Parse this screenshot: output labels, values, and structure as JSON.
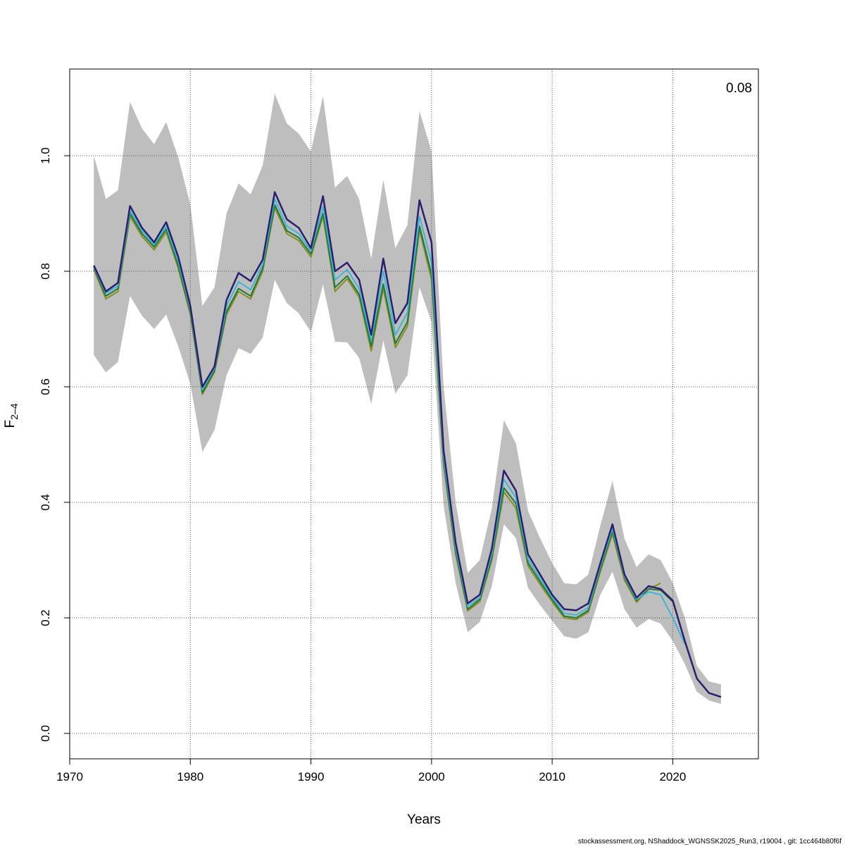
{
  "chart_data": {
    "type": "line",
    "ylabel": {
      "main": "F",
      "sub": "2–4"
    },
    "xlabel": "Years",
    "annotation": "0.08",
    "footer": "stockassessment.org, NShaddock_WGNSSK2025_Run3, r19004 , git: 1cc464b80f6f",
    "x": [
      1972,
      1973,
      1974,
      1975,
      1976,
      1977,
      1978,
      1979,
      1980,
      1981,
      1982,
      1983,
      1984,
      1985,
      1986,
      1987,
      1988,
      1989,
      1990,
      1991,
      1992,
      1993,
      1994,
      1995,
      1996,
      1997,
      1998,
      1999,
      2000,
      2001,
      2002,
      2003,
      2004,
      2005,
      2006,
      2007,
      2008,
      2009,
      2010,
      2011,
      2012,
      2013,
      2014,
      2015,
      2016,
      2017,
      2018,
      2019,
      2020,
      2021,
      2022,
      2023,
      2024
    ],
    "band": {
      "color": "#bebebe",
      "lower": [
        0.655,
        0.625,
        0.643,
        0.757,
        0.723,
        0.7,
        0.725,
        0.67,
        0.605,
        0.487,
        0.525,
        0.62,
        0.667,
        0.657,
        0.685,
        0.785,
        0.745,
        0.727,
        0.695,
        0.777,
        0.678,
        0.677,
        0.65,
        0.57,
        0.68,
        0.588,
        0.62,
        0.772,
        0.712,
        0.395,
        0.26,
        0.175,
        0.193,
        0.255,
        0.362,
        0.338,
        0.252,
        0.222,
        0.195,
        0.168,
        0.164,
        0.175,
        0.24,
        0.28,
        0.215,
        0.183,
        0.198,
        0.19,
        0.16,
        0.12,
        0.072,
        0.057,
        0.051
      ],
      "upper": [
        1.0,
        0.925,
        0.94,
        1.093,
        1.047,
        1.02,
        1.058,
        0.997,
        0.915,
        0.74,
        0.772,
        0.9,
        0.952,
        0.933,
        0.983,
        1.107,
        1.056,
        1.038,
        1.007,
        1.103,
        0.945,
        0.965,
        0.925,
        0.822,
        0.958,
        0.84,
        0.88,
        1.077,
        1.008,
        0.6,
        0.4,
        0.278,
        0.3,
        0.39,
        0.542,
        0.502,
        0.385,
        0.338,
        0.295,
        0.26,
        0.258,
        0.275,
        0.36,
        0.437,
        0.337,
        0.288,
        0.31,
        0.3,
        0.26,
        0.2,
        0.117,
        0.09,
        0.085
      ]
    },
    "series": [
      {
        "color": "#8b8b1e",
        "values": [
          0.803,
          0.752,
          0.765,
          0.895,
          0.86,
          0.837,
          0.868,
          0.805,
          0.725,
          0.587,
          0.625,
          0.725,
          0.765,
          0.752,
          0.8,
          0.91,
          0.865,
          0.853,
          0.825,
          0.895,
          0.765,
          0.787,
          0.755,
          0.662,
          0.77,
          0.668,
          0.705,
          0.872,
          0.785,
          0.465,
          0.31,
          0.212,
          0.228,
          0.3,
          0.418,
          0.39,
          0.29,
          0.258,
          0.228,
          0.2,
          0.197,
          0.21,
          0.28,
          0.345,
          0.265,
          0.227,
          0.25,
          0.26,
          null,
          null,
          null,
          null,
          null
        ]
      },
      {
        "color": "#1e7a3a",
        "values": [
          0.806,
          0.757,
          0.77,
          0.9,
          0.865,
          0.842,
          0.873,
          0.81,
          0.73,
          0.59,
          0.628,
          0.73,
          0.77,
          0.757,
          0.805,
          0.915,
          0.87,
          0.858,
          0.83,
          0.9,
          0.772,
          0.792,
          0.76,
          0.67,
          0.778,
          0.675,
          0.712,
          0.878,
          0.795,
          0.47,
          0.315,
          0.215,
          0.232,
          0.305,
          0.425,
          0.398,
          0.295,
          0.263,
          0.232,
          0.203,
          0.2,
          0.213,
          0.285,
          0.35,
          0.27,
          0.23,
          0.25,
          0.248,
          0.228,
          null,
          null,
          null,
          null
        ]
      },
      {
        "color": "#3fb5d6",
        "values": [
          0.808,
          0.762,
          0.775,
          0.905,
          0.87,
          0.846,
          0.878,
          0.817,
          0.735,
          0.595,
          0.632,
          0.74,
          0.782,
          0.768,
          0.812,
          0.925,
          0.878,
          0.865,
          0.835,
          0.912,
          0.785,
          0.803,
          0.77,
          0.68,
          0.8,
          0.69,
          0.728,
          0.895,
          0.815,
          0.478,
          0.322,
          0.22,
          0.235,
          0.312,
          0.44,
          0.408,
          0.302,
          0.268,
          0.236,
          0.208,
          0.205,
          0.218,
          0.29,
          0.355,
          0.272,
          0.232,
          0.245,
          0.24,
          0.2,
          0.155,
          null,
          null,
          null
        ]
      },
      {
        "color": "#2d1e6e",
        "values": [
          0.81,
          0.765,
          0.78,
          0.913,
          0.875,
          0.85,
          0.885,
          0.825,
          0.74,
          0.6,
          0.635,
          0.75,
          0.797,
          0.783,
          0.82,
          0.937,
          0.89,
          0.875,
          0.84,
          0.93,
          0.8,
          0.815,
          0.785,
          0.69,
          0.822,
          0.71,
          0.745,
          0.923,
          0.85,
          0.49,
          0.33,
          0.225,
          0.24,
          0.32,
          0.455,
          0.42,
          0.31,
          0.275,
          0.24,
          0.215,
          0.213,
          0.225,
          0.295,
          0.362,
          0.275,
          0.235,
          0.255,
          0.25,
          0.23,
          0.16,
          0.095,
          0.07,
          0.063
        ]
      }
    ],
    "xlim": [
      1970,
      2027.1
    ],
    "ylim": [
      -0.044,
      1.15
    ],
    "xticks": [
      1970,
      1980,
      1990,
      2000,
      2010,
      2020
    ],
    "yticks": [
      {
        "value": 0,
        "label": "0.0"
      },
      0.2,
      0.4,
      0.6,
      0.8,
      {
        "value": 1,
        "label": "1.0"
      }
    ],
    "grid": true
  }
}
